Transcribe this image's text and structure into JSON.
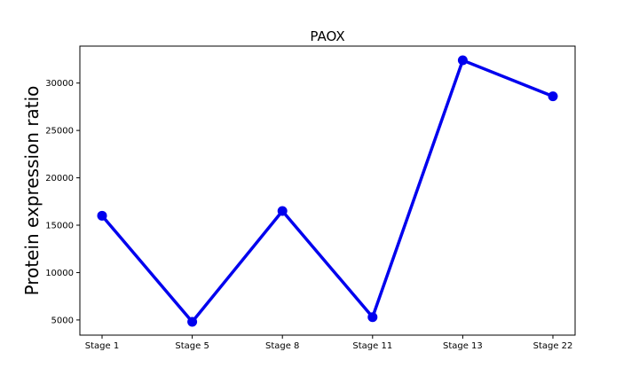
{
  "chart_data": {
    "type": "line",
    "title": "PAOX",
    "xlabel": "",
    "ylabel": "Protein expression ratio",
    "categories": [
      "Stage 1",
      "Stage 5",
      "Stage 8",
      "Stage 11",
      "Stage 13",
      "Stage 22"
    ],
    "series": [
      {
        "name": "PAOX",
        "values": [
          16000,
          4800,
          16500,
          5300,
          32400,
          28600
        ]
      }
    ],
    "ylim": [
      3400,
      33900
    ],
    "yticks": [
      5000,
      10000,
      15000,
      20000,
      25000,
      30000
    ],
    "ytick_labels": [
      "5000",
      "10000",
      "15000",
      "20000",
      "25000",
      "30000"
    ],
    "grid": false,
    "colors": {
      "line": "#0000ee",
      "marker": "#0000ee",
      "axes": "#000000"
    }
  }
}
